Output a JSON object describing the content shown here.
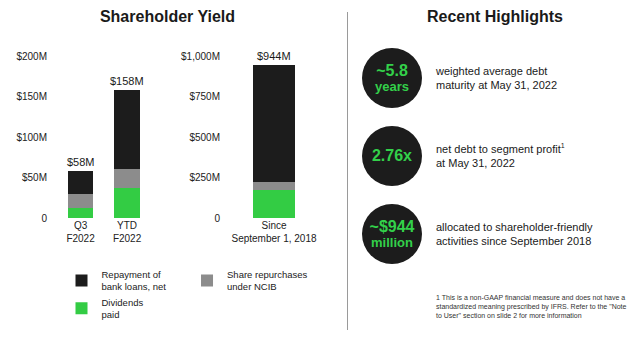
{
  "heading": "Shareholder Yield",
  "chart_data": [
    {
      "type": "bar",
      "stacked": true,
      "legend": "bottom",
      "grid": false,
      "categories": [
        "Q3\nF2022",
        "YTD\nF2022"
      ],
      "series": [
        {
          "name": "Dividends\npaid",
          "color": "#33cc44",
          "values": [
            12,
            37
          ]
        },
        {
          "name": "Share repurchases\nunder NCIB",
          "color": "#8c8c8c",
          "values": [
            18,
            24
          ]
        },
        {
          "name": "Repayment of\nbank loans, net",
          "color": "#1c1c1c",
          "values": [
            28,
            97
          ]
        }
      ],
      "totals": [
        58,
        158
      ],
      "total_labels": [
        "$58M",
        "$158M"
      ],
      "ylim": [
        0,
        200
      ],
      "yticks": [
        0,
        {
          "value": 50,
          "label": "$50M"
        },
        {
          "value": 100,
          "label": "$100M"
        },
        {
          "value": 150,
          "label": "$150M"
        },
        {
          "value": 200,
          "label": "$200M"
        }
      ]
    },
    {
      "type": "bar",
      "stacked": true,
      "grid": false,
      "categories": [
        "Since\nSeptember 1, 2018"
      ],
      "series": [
        {
          "name": "Dividends\npaid",
          "color": "#33cc44",
          "values": [
            170
          ]
        },
        {
          "name": "Share repurchases\nunder NCIB",
          "color": "#8c8c8c",
          "values": [
            50
          ]
        },
        {
          "name": "Repayment of\nbank loans, net",
          "color": "#1c1c1c",
          "values": [
            724
          ]
        }
      ],
      "totals": [
        944
      ],
      "total_labels": [
        "$944M"
      ],
      "ylim": [
        0,
        1000
      ],
      "yticks": [
        0,
        {
          "value": 250,
          "label": "$250M"
        },
        {
          "value": 500,
          "label": "$500M"
        },
        {
          "value": 750,
          "label": "$750M"
        },
        {
          "value": 1000,
          "label": "$1,000M"
        }
      ]
    }
  ],
  "highlights": {
    "title": "Recent Highlights",
    "items": [
      {
        "figure": "~5.8",
        "unit": "years",
        "text": [
          "weighted average debt",
          "maturity at May 31, 2022"
        ]
      },
      {
        "figure": "2.76x",
        "text": [
          "net debt to segment profit",
          "at May 31, 2022"
        ],
        "mark": "1"
      },
      {
        "figure": "~$944",
        "unit": "million",
        "text": [
          "allocated to shareholder-friendly",
          "activities since September 2018"
        ]
      }
    ]
  },
  "footnote": "1 This is a non-GAAP financial measure and does not have a standardized meaning prescribed by IFRS. Refer to the \"Note to User\" section on slide 2 for more information"
}
